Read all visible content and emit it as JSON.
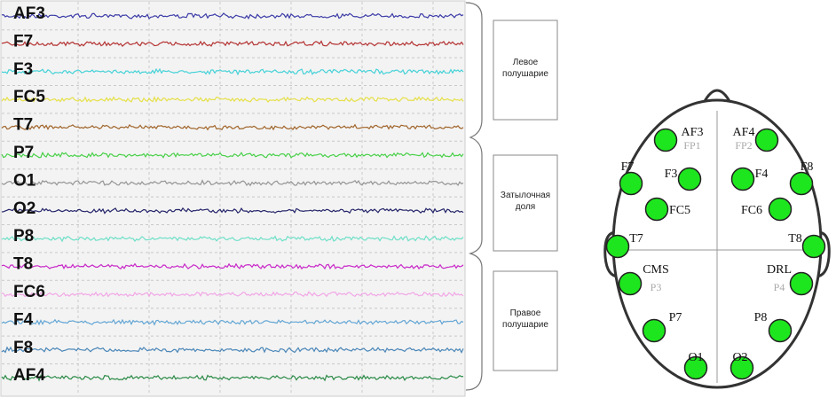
{
  "channels": [
    {
      "name": "AF3",
      "color": "#3c3ca8"
    },
    {
      "name": "F7",
      "color": "#b43232"
    },
    {
      "name": "F3",
      "color": "#46d2d8"
    },
    {
      "name": "FC5",
      "color": "#e6e048"
    },
    {
      "name": "T7",
      "color": "#a0642a"
    },
    {
      "name": "P7",
      "color": "#48d048"
    },
    {
      "name": "O1",
      "color": "#949494"
    },
    {
      "name": "O2",
      "color": "#24246a"
    },
    {
      "name": "P8",
      "color": "#6ee0c8"
    },
    {
      "name": "T8",
      "color": "#c828c8"
    },
    {
      "name": "FC6",
      "color": "#f2a6e6"
    },
    {
      "name": "F4",
      "color": "#64a6d4"
    },
    {
      "name": "F8",
      "color": "#4a86b8"
    },
    {
      "name": "AF4",
      "color": "#2a8a46"
    }
  ],
  "regions": [
    {
      "label": "Левое полушарие"
    },
    {
      "label": "Затылочная доля"
    },
    {
      "label": "Правое полушарие"
    }
  ],
  "electrodes": [
    {
      "label": "AF3",
      "sub": "FP1"
    },
    {
      "label": "AF4",
      "sub": "FP2"
    },
    {
      "label": "F7"
    },
    {
      "label": "F8"
    },
    {
      "label": "F3"
    },
    {
      "label": "F4"
    },
    {
      "label": "FC5"
    },
    {
      "label": "FC6"
    },
    {
      "label": "T7"
    },
    {
      "label": "T8"
    },
    {
      "label": "CMS",
      "sub": "P3"
    },
    {
      "label": "DRL",
      "sub": "P4"
    },
    {
      "label": "P7"
    },
    {
      "label": "P8"
    },
    {
      "label": "O1"
    },
    {
      "label": "O2"
    }
  ]
}
